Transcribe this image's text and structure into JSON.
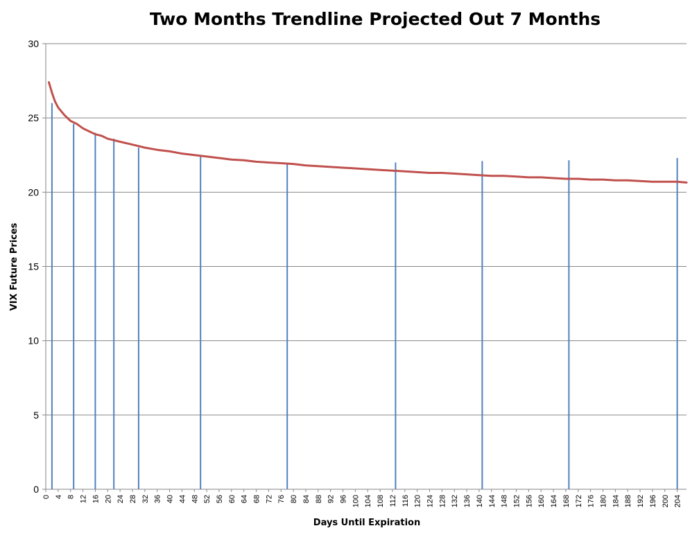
{
  "chart_data": {
    "type": "line",
    "title": "Two Months Trendline Projected Out 7 Months",
    "xlabel": "Days Until Expiration",
    "ylabel": "VIX Future Prices",
    "xlim": [
      0,
      207
    ],
    "ylim": [
      0,
      30
    ],
    "yticks": [
      0,
      5,
      10,
      15,
      20,
      25,
      30
    ],
    "xtick_step": 4,
    "grid": "horizontal",
    "series": [
      {
        "kind": "line",
        "color": "#C0504D",
        "x": [
          1,
          2,
          3,
          4,
          6,
          8,
          10,
          12,
          14,
          16,
          18,
          20,
          22,
          24,
          28,
          32,
          36,
          40,
          44,
          48,
          52,
          56,
          60,
          64,
          68,
          72,
          76,
          80,
          84,
          88,
          92,
          96,
          100,
          104,
          108,
          112,
          116,
          120,
          124,
          128,
          132,
          136,
          140,
          144,
          148,
          152,
          156,
          160,
          164,
          168,
          172,
          176,
          180,
          184,
          188,
          192,
          196,
          200,
          204,
          207
        ],
        "y": [
          27.4,
          26.7,
          26.1,
          25.7,
          25.2,
          24.8,
          24.6,
          24.3,
          24.1,
          23.9,
          23.8,
          23.6,
          23.5,
          23.4,
          23.2,
          23.0,
          22.85,
          22.75,
          22.6,
          22.5,
          22.4,
          22.3,
          22.2,
          22.15,
          22.05,
          22.0,
          21.95,
          21.9,
          21.8,
          21.75,
          21.7,
          21.65,
          21.6,
          21.55,
          21.5,
          21.45,
          21.4,
          21.35,
          21.3,
          21.3,
          21.25,
          21.2,
          21.15,
          21.1,
          21.1,
          21.05,
          21.0,
          21.0,
          20.95,
          20.9,
          20.9,
          20.85,
          20.85,
          20.8,
          20.8,
          20.75,
          20.7,
          20.7,
          20.7,
          20.65
        ]
      },
      {
        "kind": "bar",
        "color": "#4F81BD",
        "x": [
          2,
          9,
          16,
          22,
          30,
          50,
          78,
          113,
          141,
          169,
          204
        ],
        "y": [
          26.0,
          24.6,
          24.0,
          23.6,
          23.0,
          22.4,
          21.9,
          22.0,
          22.1,
          22.15,
          22.3
        ]
      }
    ]
  }
}
